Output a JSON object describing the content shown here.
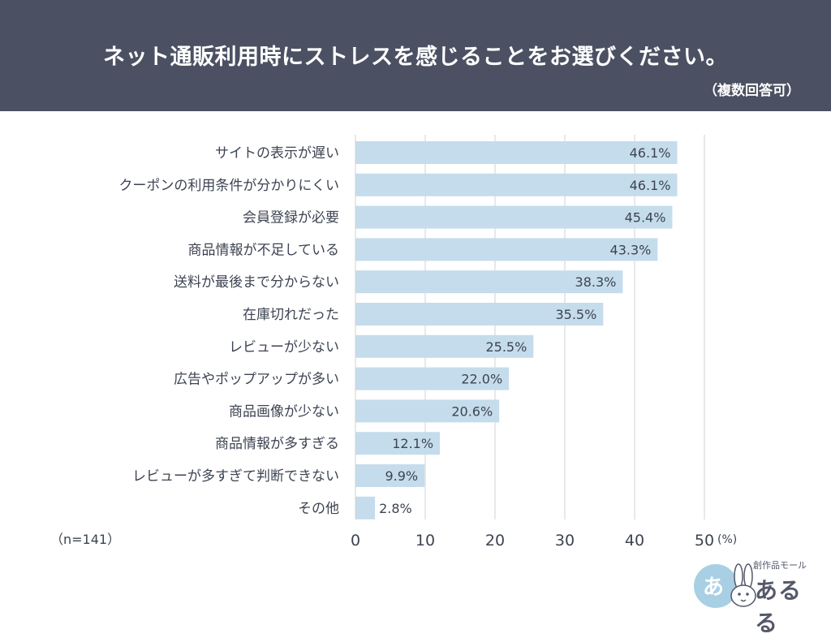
{
  "header": {
    "title": "ネット通販利用時にストレスを感じることをお選びください。",
    "subtitle": "（複数回答可）"
  },
  "sample_note": "（n=141）",
  "logo": {
    "tagline": "創作品モール",
    "name": "あるる",
    "mark_text": "あ"
  },
  "colors": {
    "header_bg": "#4b5162",
    "bar": "#c5dcec",
    "text": "#3d4452",
    "grid": "#cfd2d6",
    "logo_circle": "#a9cfe4"
  },
  "chart_data": {
    "type": "bar",
    "orientation": "horizontal",
    "categories": [
      "サイトの表示が遅い",
      "クーポンの利用条件が分かりにくい",
      "会員登録が必要",
      "商品情報が不足している",
      "送料が最後まで分からない",
      "在庫切れだった",
      "レビューが少ない",
      "広告やポップアップが多い",
      "商品画像が少ない",
      "商品情報が多すぎる",
      "レビューが多すぎて判断できない",
      "その他"
    ],
    "values": [
      46.1,
      46.1,
      45.4,
      43.3,
      38.3,
      35.5,
      25.5,
      22.0,
      20.6,
      12.1,
      9.9,
      2.8
    ],
    "value_labels": [
      "46.1%",
      "46.1%",
      "45.4%",
      "43.3%",
      "38.3%",
      "35.5%",
      "25.5%",
      "22.0%",
      "20.6%",
      "12.1%",
      "9.9%",
      "2.8%"
    ],
    "xlim": [
      0,
      50
    ],
    "ticks": [
      0,
      10,
      20,
      30,
      40,
      50
    ],
    "tick_labels": [
      "0",
      "10",
      "20",
      "30",
      "40",
      "50"
    ],
    "unit": "(%)",
    "grid": true
  }
}
